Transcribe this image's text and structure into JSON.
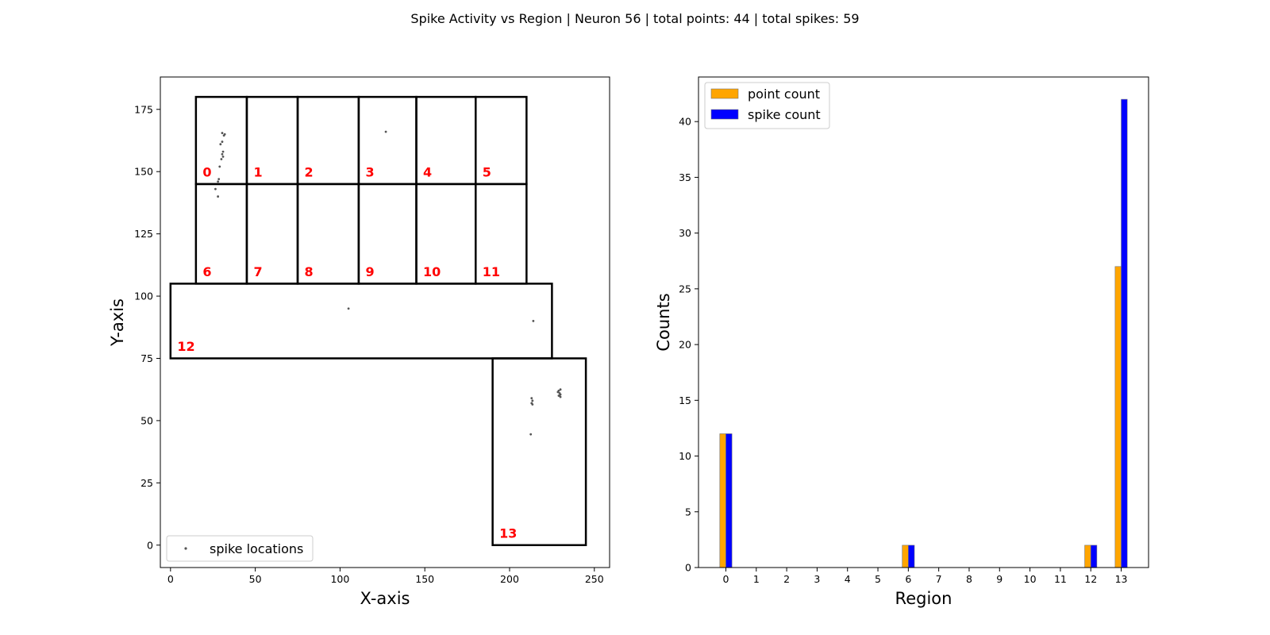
{
  "figure": {
    "suptitle": "Spike Activity vs Region | Neuron 56 | total points: 44 | total spikes: 59"
  },
  "chart_data": [
    {
      "type": "scatter",
      "title": "",
      "xlabel": "X-axis",
      "ylabel": "Y-axis",
      "xlim": [
        -6,
        259
      ],
      "ylim": [
        -9,
        188
      ],
      "xticks": [
        0,
        50,
        100,
        150,
        200,
        250
      ],
      "yticks": [
        0,
        25,
        50,
        75,
        100,
        125,
        150,
        175
      ],
      "grid": false,
      "legend": {
        "placement": "lower-left",
        "entries": [
          "spike locations"
        ]
      },
      "colors": {
        "points": "#555555",
        "regions": "#000000",
        "region_labels": "#ff0000"
      },
      "regions": [
        {
          "id": "0",
          "x0": 15,
          "x1": 45,
          "y0": 145,
          "y1": 180,
          "label_at": [
            19,
            148
          ]
        },
        {
          "id": "1",
          "x0": 45,
          "x1": 75,
          "y0": 145,
          "y1": 180,
          "label_at": [
            49,
            148
          ]
        },
        {
          "id": "2",
          "x0": 75,
          "x1": 111,
          "y0": 145,
          "y1": 180,
          "label_at": [
            79,
            148
          ]
        },
        {
          "id": "3",
          "x0": 111,
          "x1": 145,
          "y0": 145,
          "y1": 180,
          "label_at": [
            115,
            148
          ]
        },
        {
          "id": "4",
          "x0": 145,
          "x1": 180,
          "y0": 145,
          "y1": 180,
          "label_at": [
            149,
            148
          ]
        },
        {
          "id": "5",
          "x0": 180,
          "x1": 210,
          "y0": 145,
          "y1": 180,
          "label_at": [
            184,
            148
          ]
        },
        {
          "id": "6",
          "x0": 15,
          "x1": 45,
          "y0": 105,
          "y1": 145,
          "label_at": [
            19,
            108
          ]
        },
        {
          "id": "7",
          "x0": 45,
          "x1": 75,
          "y0": 105,
          "y1": 145,
          "label_at": [
            49,
            108
          ]
        },
        {
          "id": "8",
          "x0": 75,
          "x1": 111,
          "y0": 105,
          "y1": 145,
          "label_at": [
            79,
            108
          ]
        },
        {
          "id": "9",
          "x0": 111,
          "x1": 145,
          "y0": 105,
          "y1": 145,
          "label_at": [
            115,
            108
          ]
        },
        {
          "id": "10",
          "x0": 145,
          "x1": 180,
          "y0": 105,
          "y1": 145,
          "label_at": [
            149,
            108
          ]
        },
        {
          "id": "11",
          "x0": 180,
          "x1": 210,
          "y0": 105,
          "y1": 145,
          "label_at": [
            184,
            108
          ]
        },
        {
          "id": "12",
          "x0": 0,
          "x1": 225,
          "y0": 75,
          "y1": 105,
          "label_at": [
            4,
            78
          ]
        },
        {
          "id": "13",
          "x0": 190,
          "x1": 245,
          "y0": 0,
          "y1": 75,
          "label_at": [
            194,
            3
          ]
        }
      ],
      "points": [
        [
          30.5,
          165.5
        ],
        [
          31.5,
          164.5
        ],
        [
          32.0,
          165.0
        ],
        [
          30.5,
          162.0
        ],
        [
          29.5,
          161.0
        ],
        [
          31.0,
          158.0
        ],
        [
          30.5,
          157.0
        ],
        [
          31.0,
          156.0
        ],
        [
          30.0,
          155.0
        ],
        [
          29.0,
          152.0
        ],
        [
          28.5,
          147.0
        ],
        [
          28.0,
          146.0
        ],
        [
          26.5,
          143.0
        ],
        [
          28.0,
          140.0
        ],
        [
          127.0,
          166.0
        ],
        [
          105.0,
          95.0
        ],
        [
          214.0,
          90.0
        ],
        [
          213.0,
          59.0
        ],
        [
          213.5,
          58.0
        ],
        [
          213.0,
          57.0
        ],
        [
          213.5,
          56.5
        ],
        [
          212.5,
          44.5
        ],
        [
          229.0,
          62.0
        ],
        [
          230.0,
          62.5
        ],
        [
          229.5,
          61.0
        ],
        [
          228.5,
          61.5
        ],
        [
          230.0,
          60.5
        ],
        [
          229.5,
          60.0
        ],
        [
          230.0,
          59.5
        ],
        [
          229.0,
          60.0
        ]
      ]
    },
    {
      "type": "bar",
      "title": "",
      "xlabel": "Region",
      "ylabel": "Counts",
      "categories": [
        "0",
        "1",
        "2",
        "3",
        "4",
        "5",
        "6",
        "7",
        "8",
        "9",
        "10",
        "11",
        "12",
        "13"
      ],
      "ylim": [
        0,
        44
      ],
      "yticks": [
        0,
        5,
        10,
        15,
        20,
        25,
        30,
        35,
        40
      ],
      "grid": false,
      "legend": {
        "placement": "top-left"
      },
      "series": [
        {
          "name": "point count",
          "color": "#ffa500",
          "values": [
            12,
            0,
            0,
            0,
            0,
            0,
            2,
            0,
            0,
            0,
            0,
            0,
            2,
            27
          ]
        },
        {
          "name": "spike count",
          "color": "#0000ff",
          "values": [
            12,
            0,
            0,
            0,
            0,
            0,
            2,
            0,
            0,
            0,
            0,
            0,
            2,
            42
          ]
        }
      ]
    }
  ]
}
